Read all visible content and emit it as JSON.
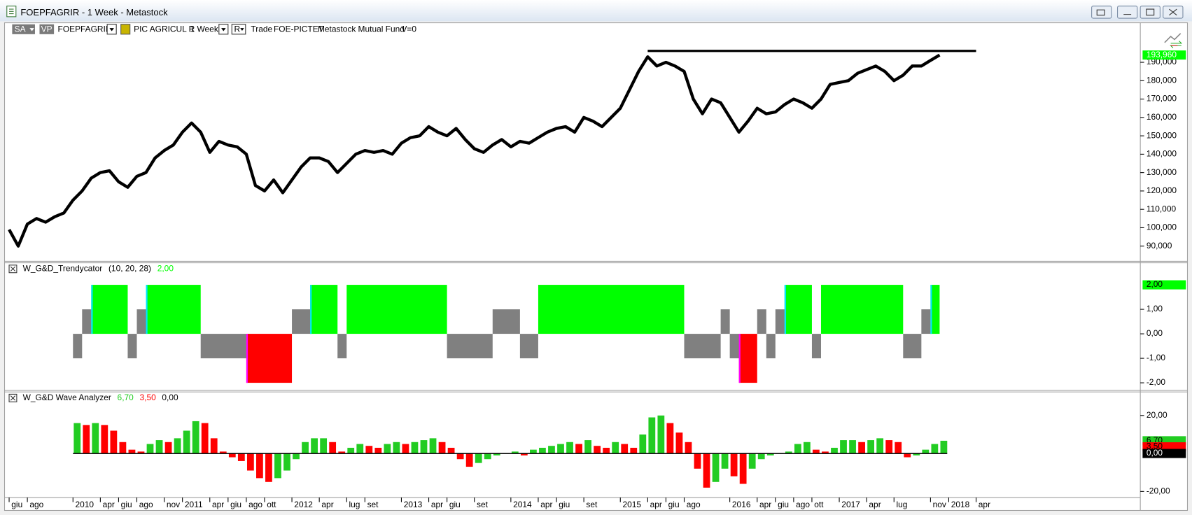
{
  "window": {
    "title": "FOEPFAGRIR - 1 Week - Metastock"
  },
  "toolbar": {
    "sa": "SA",
    "vp": "VP",
    "symbol": "FOEPFAGRIR",
    "name": "PIC AGRICUL R",
    "period": "1 Week",
    "r": "R",
    "mode": "Trade",
    "code": "FOE-PICTET",
    "source": "Metastock",
    "kind": "Mutual Fund",
    "volume": "V=0"
  },
  "chart_data": [
    {
      "type": "line",
      "color": "#000000",
      "xlim": [
        "2009-06",
        "2019-10"
      ],
      "ylim": [
        82150,
        211500
      ],
      "yticks": [
        {
          "value": 90000,
          "label": "90,000"
        },
        {
          "value": 100000,
          "label": "100,000"
        },
        {
          "value": 110000,
          "label": "110,000"
        },
        {
          "value": 120000,
          "label": "120,000"
        },
        {
          "value": 130000,
          "label": "130,000"
        },
        {
          "value": 140000,
          "label": "140,000"
        },
        {
          "value": 150000,
          "label": "150,000"
        },
        {
          "value": 160000,
          "label": "160,000"
        },
        {
          "value": 170000,
          "label": "170,000"
        },
        {
          "value": 180000,
          "label": "180,000"
        },
        {
          "value": 190000,
          "label": "190,000"
        }
      ],
      "x": [
        "2009-06",
        "2009-07",
        "2009-08",
        "2009-09",
        "2009-10",
        "2009-11",
        "2009-12",
        "2010-01",
        "2010-02",
        "2010-03",
        "2010-04",
        "2010-05",
        "2010-06",
        "2010-07",
        "2010-08",
        "2010-09",
        "2010-10",
        "2010-11",
        "2010-12",
        "2011-01",
        "2011-02",
        "2011-03",
        "2011-04",
        "2011-05",
        "2011-06",
        "2011-07",
        "2011-08",
        "2011-09",
        "2011-10",
        "2011-11",
        "2011-12",
        "2012-01",
        "2012-02",
        "2012-03",
        "2012-04",
        "2012-05",
        "2012-06",
        "2012-07",
        "2012-08",
        "2012-09",
        "2012-10",
        "2012-11",
        "2012-12",
        "2013-01",
        "2013-02",
        "2013-03",
        "2013-04",
        "2013-05",
        "2013-06",
        "2013-07",
        "2013-08",
        "2013-09",
        "2013-10",
        "2013-11",
        "2013-12",
        "2014-01",
        "2014-02",
        "2014-03",
        "2014-04",
        "2014-05",
        "2014-06",
        "2014-07",
        "2014-08",
        "2014-09",
        "2014-10",
        "2014-11",
        "2014-12",
        "2015-01",
        "2015-02",
        "2015-03",
        "2015-04",
        "2015-05",
        "2015-06",
        "2015-07",
        "2015-08",
        "2015-09",
        "2015-10",
        "2015-11",
        "2015-12",
        "2016-01",
        "2016-02",
        "2016-03",
        "2016-04",
        "2016-05",
        "2016-06",
        "2016-07",
        "2016-08",
        "2016-09",
        "2016-10",
        "2016-11",
        "2016-12",
        "2017-01",
        "2017-02",
        "2017-03",
        "2017-04",
        "2017-05",
        "2017-06",
        "2017-07",
        "2017-08",
        "2017-09",
        "2017-10",
        "2017-11",
        "2017-12"
      ],
      "values": [
        99000,
        90000,
        102000,
        105000,
        103000,
        106000,
        108000,
        115000,
        120000,
        127000,
        130000,
        131000,
        125000,
        122000,
        128000,
        130000,
        138000,
        142000,
        145000,
        152000,
        157000,
        152000,
        141000,
        147000,
        145000,
        144000,
        140000,
        123000,
        120000,
        126000,
        119000,
        126000,
        133000,
        138000,
        138000,
        136000,
        130000,
        135000,
        140000,
        142000,
        141000,
        142000,
        140000,
        146000,
        149000,
        150000,
        155000,
        152000,
        150000,
        154000,
        148000,
        143000,
        141000,
        145000,
        148000,
        144000,
        147000,
        146000,
        149000,
        152000,
        154000,
        155000,
        152000,
        160000,
        158000,
        155000,
        160000,
        165000,
        175000,
        185000,
        193000,
        188000,
        190000,
        188000,
        185000,
        170000,
        162000,
        170000,
        168000,
        160000,
        152000,
        158000,
        165000,
        162000,
        163000,
        167000,
        170000,
        168000,
        165000,
        170000,
        178000,
        179000,
        180000,
        184000,
        186000,
        188000,
        185000,
        180000,
        183000,
        188000,
        188000,
        191000,
        193960
      ],
      "reference_line": {
        "value": 196200,
        "from": "2015-04",
        "to": "2018-04",
        "color": "#000000"
      },
      "readouts": [
        {
          "value": 193960,
          "label": "193,960",
          "box_color": "#00ff00",
          "text_color": "#ffffff"
        }
      ]
    },
    {
      "type": "step",
      "legend_title": "W_G&D_Trendycator",
      "params": "(10,  20,  28)",
      "xlim": [
        "2009-06",
        "2019-10"
      ],
      "ylim": [
        -2.28,
        2.93
      ],
      "yticks": [
        {
          "value": 1,
          "label": "1,00"
        },
        {
          "value": 0,
          "label": "0,00"
        },
        {
          "value": -1,
          "label": "-1,00"
        },
        {
          "value": -2,
          "label": "-2,00"
        }
      ],
      "colors": {
        "2": "#00ff00",
        "1": "#808080",
        "-1": "#808080",
        "-2": "#ff0000"
      },
      "edge_colors": {
        "up": "#00e5ff",
        "down": "#ff00ff"
      },
      "steps": [
        {
          "from": "2010-01",
          "value": -1
        },
        {
          "from": "2010-02",
          "value": 1
        },
        {
          "from": "2010-03",
          "value": 2
        },
        {
          "from": "2010-07",
          "value": -1
        },
        {
          "from": "2010-08",
          "value": 1
        },
        {
          "from": "2010-09",
          "value": 2
        },
        {
          "from": "2011-03",
          "value": -1
        },
        {
          "from": "2011-08",
          "value": -2
        },
        {
          "from": "2012-01",
          "value": 1
        },
        {
          "from": "2012-03",
          "value": 2
        },
        {
          "from": "2012-06",
          "value": -1
        },
        {
          "from": "2012-07",
          "value": 2
        },
        {
          "from": "2013-06",
          "value": -1
        },
        {
          "from": "2013-11",
          "value": 1
        },
        {
          "from": "2014-02",
          "value": -1
        },
        {
          "from": "2014-04",
          "value": 2
        },
        {
          "from": "2015-08",
          "value": -1
        },
        {
          "from": "2015-12",
          "value": 1
        },
        {
          "from": "2016-01",
          "value": -1
        },
        {
          "from": "2016-02",
          "value": -2
        },
        {
          "from": "2016-04",
          "value": 1
        },
        {
          "from": "2016-05",
          "value": -1
        },
        {
          "from": "2016-06",
          "value": 1
        },
        {
          "from": "2016-07",
          "value": 2
        },
        {
          "from": "2016-10",
          "value": -1
        },
        {
          "from": "2016-11",
          "value": 2
        },
        {
          "from": "2017-08",
          "value": -1
        },
        {
          "from": "2017-10",
          "value": 1
        },
        {
          "from": "2017-11",
          "value": 2
        }
      ],
      "end": "2017-12",
      "readouts": [
        {
          "value": 2,
          "label": "2,00",
          "box_color": "#00ff00",
          "text_color": "#000000"
        }
      ]
    },
    {
      "type": "bar",
      "legend_title": "W_G&D Wave Analyzer",
      "xlim": [
        "2009-06",
        "2019-10"
      ],
      "ylim": [
        -23.2,
        32.8
      ],
      "yticks": [
        {
          "value": 20,
          "label": "20,00"
        },
        {
          "value": -20,
          "label": "-20,00"
        }
      ],
      "up_color": "#22cc22",
      "down_color": "#ff0000",
      "baseline_color": "#000000",
      "x": [
        "2010-01",
        "2010-02",
        "2010-03",
        "2010-04",
        "2010-05",
        "2010-06",
        "2010-07",
        "2010-08",
        "2010-09",
        "2010-10",
        "2010-11",
        "2010-12",
        "2011-01",
        "2011-02",
        "2011-03",
        "2011-04",
        "2011-05",
        "2011-06",
        "2011-07",
        "2011-08",
        "2011-09",
        "2011-10",
        "2011-11",
        "2011-12",
        "2012-01",
        "2012-02",
        "2012-03",
        "2012-04",
        "2012-05",
        "2012-06",
        "2012-07",
        "2012-08",
        "2012-09",
        "2012-10",
        "2012-11",
        "2012-12",
        "2013-01",
        "2013-02",
        "2013-03",
        "2013-04",
        "2013-05",
        "2013-06",
        "2013-07",
        "2013-08",
        "2013-09",
        "2013-10",
        "2013-11",
        "2013-12",
        "2014-01",
        "2014-02",
        "2014-03",
        "2014-04",
        "2014-05",
        "2014-06",
        "2014-07",
        "2014-08",
        "2014-09",
        "2014-10",
        "2014-11",
        "2014-12",
        "2015-01",
        "2015-02",
        "2015-03",
        "2015-04",
        "2015-05",
        "2015-06",
        "2015-07",
        "2015-08",
        "2015-09",
        "2015-10",
        "2015-11",
        "2015-12",
        "2016-01",
        "2016-02",
        "2016-03",
        "2016-04",
        "2016-05",
        "2016-06",
        "2016-07",
        "2016-08",
        "2016-09",
        "2016-10",
        "2016-11",
        "2016-12",
        "2017-01",
        "2017-02",
        "2017-03",
        "2017-04",
        "2017-05",
        "2017-06",
        "2017-07",
        "2017-08",
        "2017-09",
        "2017-10",
        "2017-11",
        "2017-12"
      ],
      "values": [
        16,
        15,
        16,
        15,
        12,
        6,
        2,
        1,
        5,
        7,
        6,
        8,
        12,
        17,
        16,
        8,
        1,
        -2,
        -4,
        -9,
        -13,
        -15,
        -13,
        -9,
        -3,
        6,
        8,
        8,
        6,
        1,
        3,
        5,
        4,
        3,
        5,
        6,
        5,
        6,
        7,
        8,
        6,
        3,
        -3,
        -7,
        -5,
        -3,
        -1,
        0,
        1,
        -1,
        2,
        3,
        4,
        5,
        6,
        5,
        7,
        4,
        3,
        6,
        5,
        3,
        10,
        19,
        20,
        16,
        11,
        6,
        -8,
        -18,
        -15,
        -8,
        -12,
        -16,
        -8,
        -3,
        -1,
        0,
        1,
        5,
        6,
        2,
        1,
        3,
        7,
        7,
        6,
        7,
        8,
        7,
        6,
        -2,
        -1,
        2,
        5,
        6.7
      ],
      "readouts": [
        {
          "value": 6.7,
          "label": "6,70",
          "box_color": "#22cc22",
          "text_color": "#000000"
        },
        {
          "value": 3.5,
          "label": "3,50",
          "box_color": "#ff0000",
          "text_color": "#000000"
        },
        {
          "value": 0,
          "label": "0,00",
          "box_color": "#000000",
          "text_color": "#ffffff"
        }
      ],
      "xticks": [
        {
          "value": "2009-06",
          "label": "giu"
        },
        {
          "value": "2009-08",
          "label": "ago"
        },
        {
          "value": "2010-01",
          "label": "2010"
        },
        {
          "value": "2010-04",
          "label": "apr"
        },
        {
          "value": "2010-06",
          "label": "giu"
        },
        {
          "value": "2010-08",
          "label": "ago"
        },
        {
          "value": "2010-11",
          "label": "nov"
        },
        {
          "value": "2011-01",
          "label": "2011"
        },
        {
          "value": "2011-04",
          "label": "apr"
        },
        {
          "value": "2011-06",
          "label": "giu"
        },
        {
          "value": "2011-08",
          "label": "ago"
        },
        {
          "value": "2011-10",
          "label": "ott"
        },
        {
          "value": "2012-01",
          "label": "2012"
        },
        {
          "value": "2012-04",
          "label": "apr"
        },
        {
          "value": "2012-07",
          "label": "lug"
        },
        {
          "value": "2012-09",
          "label": "set"
        },
        {
          "value": "2013-01",
          "label": "2013"
        },
        {
          "value": "2013-04",
          "label": "apr"
        },
        {
          "value": "2013-06",
          "label": "giu"
        },
        {
          "value": "2013-09",
          "label": "set"
        },
        {
          "value": "2014-01",
          "label": "2014"
        },
        {
          "value": "2014-04",
          "label": "apr"
        },
        {
          "value": "2014-06",
          "label": "giu"
        },
        {
          "value": "2014-09",
          "label": "set"
        },
        {
          "value": "2015-01",
          "label": "2015"
        },
        {
          "value": "2015-04",
          "label": "apr"
        },
        {
          "value": "2015-06",
          "label": "giu"
        },
        {
          "value": "2015-08",
          "label": "ago"
        },
        {
          "value": "2016-01",
          "label": "2016"
        },
        {
          "value": "2016-04",
          "label": "apr"
        },
        {
          "value": "2016-06",
          "label": "giu"
        },
        {
          "value": "2016-08",
          "label": "ago"
        },
        {
          "value": "2016-10",
          "label": "ott"
        },
        {
          "value": "2017-01",
          "label": "2017"
        },
        {
          "value": "2017-04",
          "label": "apr"
        },
        {
          "value": "2017-07",
          "label": "lug"
        },
        {
          "value": "2017-11",
          "label": "nov"
        },
        {
          "value": "2018-01",
          "label": "2018"
        },
        {
          "value": "2018-04",
          "label": "apr"
        }
      ]
    }
  ]
}
